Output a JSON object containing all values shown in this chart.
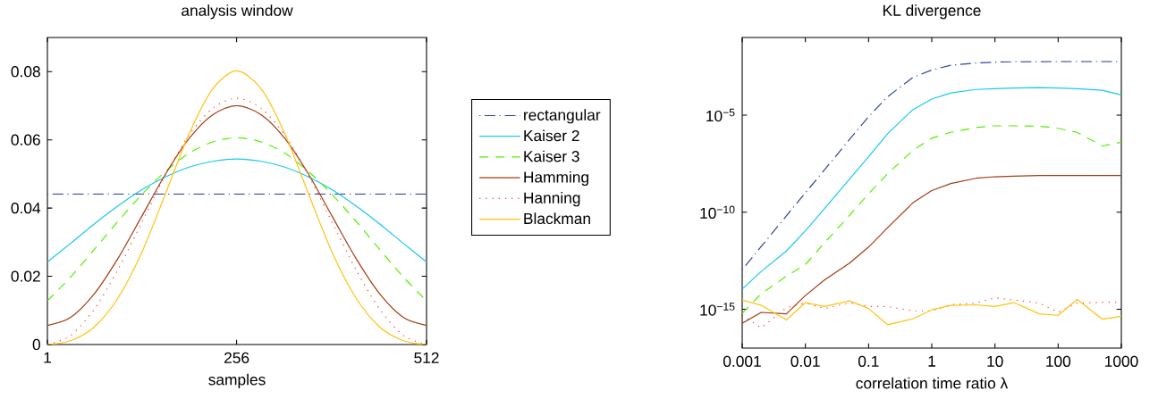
{
  "chart_data": [
    {
      "type": "line",
      "title": "analysis window",
      "xlabel": "samples",
      "xlim": [
        1,
        512
      ],
      "xticks": [
        1,
        256,
        512
      ],
      "ylim": [
        0,
        0.09
      ],
      "yticks": [
        0,
        0.02,
        0.04,
        0.06,
        0.08
      ],
      "legend": "right",
      "grid": false,
      "x": [
        1,
        32,
        64,
        96,
        128,
        160,
        192,
        224,
        256,
        289,
        321,
        353,
        385,
        417,
        449,
        481,
        512
      ],
      "series": [
        {
          "name": "rectangular",
          "color": "#2e4596",
          "line_style": "dashdot",
          "values": [
            0.0441,
            0.0441,
            0.0441,
            0.0441,
            0.0441,
            0.0441,
            0.0441,
            0.0441,
            0.0441,
            0.0441,
            0.0441,
            0.0441,
            0.0441,
            0.0441,
            0.0441,
            0.0441,
            0.0441
          ]
        },
        {
          "name": "Kaiser 2",
          "color": "#16c8f2",
          "line_style": "solid",
          "values": [
            0.0242,
            0.0296,
            0.0353,
            0.0406,
            0.0453,
            0.0491,
            0.052,
            0.0537,
            0.0544,
            0.0537,
            0.052,
            0.0491,
            0.0453,
            0.0406,
            0.0353,
            0.0296,
            0.0242
          ]
        },
        {
          "name": "Kaiser 3",
          "color": "#55ee00",
          "line_style": "dashed",
          "values": [
            0.0128,
            0.0197,
            0.0278,
            0.0361,
            0.0439,
            0.0507,
            0.0561,
            0.0594,
            0.0606,
            0.0594,
            0.0561,
            0.0507,
            0.0439,
            0.0361,
            0.0278,
            0.0197,
            0.0128
          ]
        },
        {
          "name": "Hamming",
          "color": "#a23c12",
          "line_style": "solid",
          "values": [
            0.0056,
            0.0079,
            0.0148,
            0.0252,
            0.0375,
            0.0499,
            0.0604,
            0.0674,
            0.07,
            0.0674,
            0.0604,
            0.0499,
            0.0375,
            0.0252,
            0.0148,
            0.0079,
            0.0056
          ]
        },
        {
          "name": "Hanning",
          "color": "#ff3333",
          "line_style": "dotted",
          "values": [
            0,
            0.0026,
            0.0103,
            0.0219,
            0.0357,
            0.0496,
            0.0614,
            0.0693,
            0.0722,
            0.0693,
            0.0614,
            0.0496,
            0.0357,
            0.0219,
            0.0103,
            0.0026,
            0
          ]
        },
        {
          "name": "Blackman",
          "color": "#ffc20e",
          "line_style": "solid",
          "values": [
            0,
            0.0011,
            0.0051,
            0.0136,
            0.0269,
            0.0441,
            0.0618,
            0.075,
            0.0802,
            0.075,
            0.0618,
            0.0441,
            0.0269,
            0.0136,
            0.0051,
            0.0011,
            0
          ]
        }
      ]
    },
    {
      "type": "line",
      "title": "KL divergence",
      "xlabel": "correlation time ratio λ",
      "log": "xy",
      "xlim": [
        0.001,
        1000
      ],
      "xticks": [
        0.001,
        0.01,
        0.1,
        1,
        10,
        100,
        1000
      ],
      "ylim": [
        1e-17,
        0.1
      ],
      "yticks": [
        {
          "value": 1e-15,
          "label": "10$^{−15}$"
        },
        {
          "value": 1e-10,
          "label": "10$^{−10}$"
        },
        {
          "value": 1e-05,
          "label": "10$^{−5}$"
        }
      ],
      "legend": false,
      "grid": false,
      "x": [
        0.001,
        0.002,
        0.005,
        0.01,
        0.02,
        0.05,
        0.1,
        0.2,
        0.5,
        1,
        2,
        5,
        10,
        20,
        50,
        100,
        200,
        500,
        1000
      ],
      "series": [
        {
          "color": "#2e4596",
          "line_style": "dashdot",
          "values": [
            1.1e-13,
            1.7e-12,
            6.5e-11,
            1e-09,
            1.5e-08,
            5.6e-07,
            8.3e-06,
            8.9e-05,
            0.00087,
            0.0021,
            0.0037,
            0.0048,
            0.0054,
            0.0056,
            0.0057,
            0.0058,
            0.0058,
            0.0058,
            0.0058
          ]
        },
        {
          "color": "#16c8f2",
          "line_style": "solid",
          "values": [
            1.1e-14,
            8.9e-14,
            1e-12,
            1.1e-11,
            1.5e-10,
            5.1e-09,
            7.2e-08,
            1.1e-06,
            1.9e-05,
            6.7e-05,
            0.00014,
            0.00021,
            0.00023,
            0.00025,
            0.00026,
            0.00025,
            0.00023,
            0.00019,
            0.00011
          ]
        },
        {
          "color": "#55ee00",
          "line_style": "dashed",
          "values": [
            6.2e-16,
            6.2e-15,
            5.1e-14,
            2e-13,
            2.6e-12,
            6.9e-11,
            8.9e-10,
            9.6e-09,
            1.5e-07,
            6.5e-07,
            1.3e-06,
            2.3e-06,
            2.8e-06,
            2.8e-06,
            2.7e-06,
            2.1e-06,
            1.3e-06,
            2.6e-07,
            4e-07
          ]
        },
        {
          "color": "#a23c12",
          "line_style": "solid",
          "values": [
            1.9e-16,
            6.9e-16,
            5.8e-16,
            5.1e-15,
            3.2e-14,
            2.4e-13,
            1.6e-12,
            1.6e-11,
            3e-10,
            1.3e-09,
            3e-09,
            5.6e-09,
            6.7e-09,
            7.2e-09,
            7.8e-09,
            7.8e-09,
            7.8e-09,
            7.8e-09,
            7.8e-09
          ]
        },
        {
          "color": "#ff3333",
          "line_style": "dotted",
          "values": [
            4.8e-16,
            1.1e-16,
            1.2e-15,
            2.1e-15,
            1.1e-15,
            2.1e-15,
            1.4e-15,
            1.4e-15,
            8.3e-16,
            8.3e-16,
            1.7e-15,
            2.1e-15,
            3.9e-15,
            3e-15,
            2.1e-15,
            6.9e-16,
            2.1e-15,
            2.3e-15,
            2.3e-15
          ]
        },
        {
          "color": "#ffc20e",
          "line_style": "solid",
          "values": [
            3e-15,
            1.6e-15,
            2.8e-16,
            2.2e-15,
            1.4e-15,
            2.7e-15,
            1.1e-15,
            1.6e-16,
            3.2e-16,
            9.3e-16,
            1.6e-15,
            1.7e-15,
            1.4e-15,
            2.2e-15,
            5.8e-16,
            4.9e-16,
            3.2e-15,
            3.1e-16,
            4.3e-16
          ]
        }
      ]
    }
  ]
}
